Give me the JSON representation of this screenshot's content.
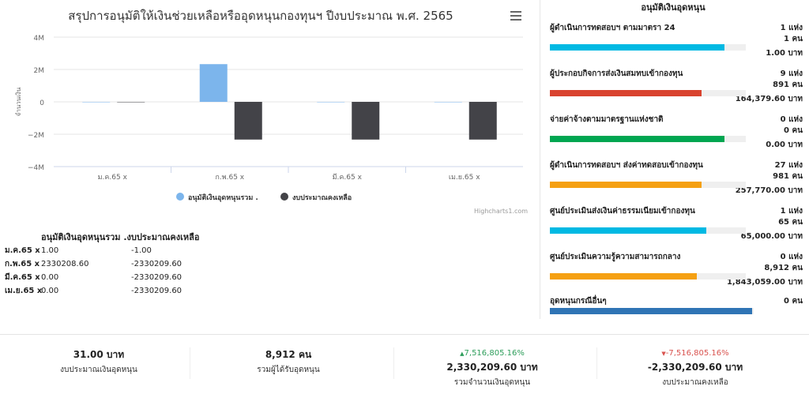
{
  "chart_title": "สรุปการอนุมัติให้เงินช่วยเหลือหรืออุดหนุนกองทุนฯ ปีงบประมาณ พ.ศ. 2565",
  "credits": "Highcharts1.com",
  "chart_data": {
    "type": "bar",
    "title": "สรุปการอนุมัติให้เงินช่วยเหลือหรืออุดหนุนกองทุนฯ ปีงบประมาณ พ.ศ. 2565",
    "xlabel": "",
    "ylabel": "จำนวนเงิน",
    "categories": [
      "ม.ค.65 x",
      "ก.พ.65 x",
      "มี.ค.65 x",
      "เม.ย.65 x"
    ],
    "ylim": [
      -4000000,
      4000000
    ],
    "yticks": [
      4000000,
      2000000,
      0,
      -2000000,
      -4000000
    ],
    "ytick_labels": [
      "4M",
      "2M",
      "0",
      "−2M",
      "−4M"
    ],
    "series": [
      {
        "name": "อนุมัติเงินอุดหนุนรวม .",
        "color": "#7cb5ec",
        "values": [
          1.0,
          2330208.6,
          0.0,
          0.0
        ]
      },
      {
        "name": "งบประมาณคงเหลือ",
        "color": "#434348",
        "values": [
          -1.0,
          -2330209.6,
          -2330209.6,
          -2330209.6
        ]
      }
    ],
    "legend": "bottom-center",
    "grid": true
  },
  "table": {
    "header": "อนุมัติเงินอุดหนุนรวม .งบประมาณคงเหลือ",
    "rows": [
      {
        "cat": "ม.ค.65 x",
        "v1": "1.00",
        "v2": "-1.00"
      },
      {
        "cat": "ก.พ.65 x",
        "v1": "2330208.60",
        "v2": "-2330209.60"
      },
      {
        "cat": "มี.ค.65 x",
        "v1": "0.00",
        "v2": "-2330209.60"
      },
      {
        "cat": "เม.ย.65 x",
        "v1": "0.00",
        "v2": "-2330209.60"
      }
    ]
  },
  "side": {
    "title": "อนุมัติเงินอุดหนุน",
    "items": [
      {
        "name": "ผู้ดำเนินการทดสอบฯ ตามมาตรา 24",
        "count": "1 แห่ง",
        "people": "1 คน",
        "amount": "1.00 บาท",
        "color": "#00b9e3",
        "fill": 0.69
      },
      {
        "name": "ผู้ประกอบกิจการส่งเงินสมทบเข้ากองทุน",
        "count": "9 แห่ง",
        "people": "891 คน",
        "amount": "164,379.60 บาท",
        "color": "#d9432f",
        "fill": 0.6
      },
      {
        "name": "จ่ายค่าจ้างตามมาตรฐานแห่งชาติ",
        "count": "0 แห่ง",
        "people": "0 คน",
        "amount": "0.00 บาท",
        "color": "#00a651",
        "fill": 0.69
      },
      {
        "name": "ผู้ดำเนินการทดสอบฯ ส่งค่าทดสอบเข้ากองทุน",
        "count": "27 แห่ง",
        "people": "981 คน",
        "amount": "257,770.00 บาท",
        "color": "#f5a012",
        "fill": 0.6
      },
      {
        "name": "ศูนย์ประเมินส่งเงินค่าธรรมเนียมเข้ากองทุน",
        "count": "1 แห่ง",
        "people": "65 คน",
        "amount": "65,000.00 บาท",
        "color": "#00b9e3",
        "fill": 0.62
      },
      {
        "name": "ศูนย์ประเมินความรู้ความสามารถกลาง",
        "count": "0 แห่ง",
        "people": "8,912 คน",
        "amount": "1,843,059.00 บาท",
        "color": "#f5a012",
        "fill": 0.58
      },
      {
        "name": "อุดหนุนกรณีอื่นๆ",
        "count": "0 คน",
        "color": "#2f74b5",
        "fill": 0.8
      }
    ]
  },
  "stats": [
    {
      "delta": "",
      "value": "31.00 บาท",
      "label": "งบประมาณเงินอุดหนุน"
    },
    {
      "delta": "",
      "value": "8,912 คน",
      "label": "รวมผู้ได้รับอุดหนุน"
    },
    {
      "delta": "7,516,805.16%",
      "direction": "up",
      "value": "2,330,209.60 บาท",
      "label": "รวมจำนวนเงินอุดหนุน"
    },
    {
      "delta": "-7,516,805.16%",
      "direction": "down",
      "value": "-2,330,209.60 บาท",
      "label": "งบประมาณคงเหลือ"
    }
  ]
}
